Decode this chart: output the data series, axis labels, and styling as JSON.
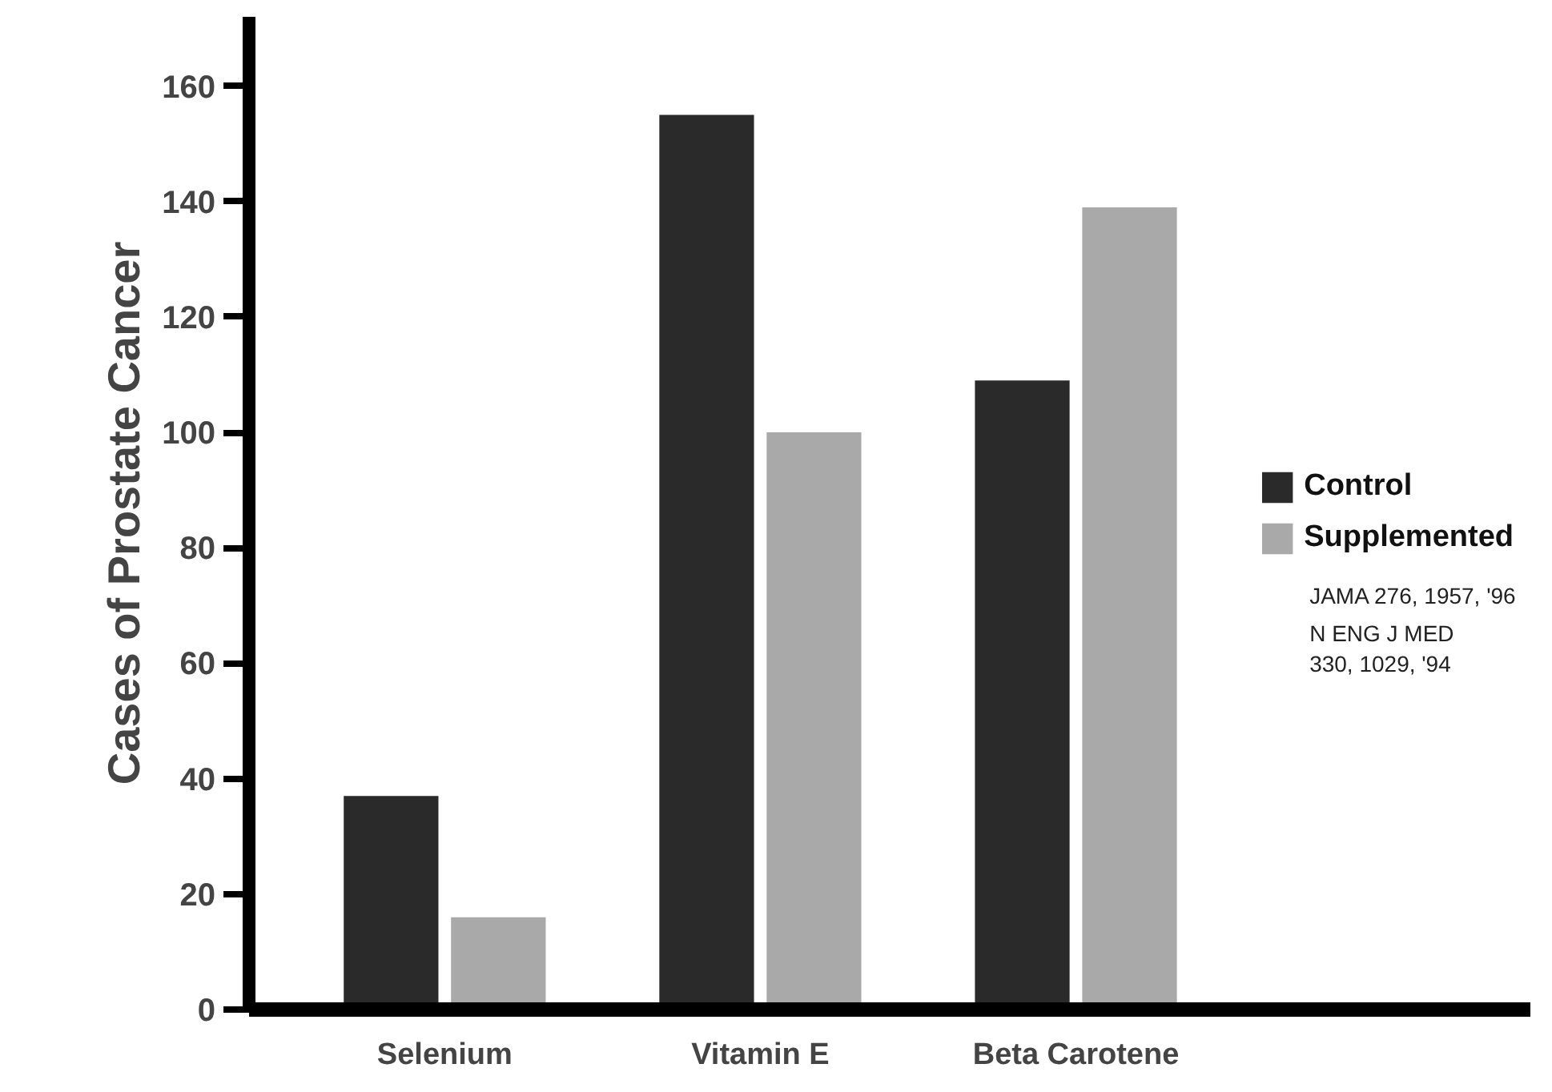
{
  "chart_data": {
    "type": "bar",
    "ylabel": "Cases of Prostate Cancer",
    "categories": [
      "Selenium",
      "Vitamin E",
      "Beta Carotene"
    ],
    "series": [
      {
        "name": "Control",
        "color": "#2a2a2a",
        "values": [
          37,
          155,
          109
        ]
      },
      {
        "name": "Supplemented",
        "color": "#a9a9a9",
        "values": [
          16,
          100,
          139
        ]
      }
    ],
    "ylim": [
      0,
      172
    ],
    "yticks": [
      0,
      20,
      40,
      60,
      80,
      100,
      120,
      140,
      160
    ],
    "grid": false,
    "legend": "right",
    "annotations": [
      "JAMA 276, 1957, '96",
      "N ENG J MED\n330, 1029, '94"
    ]
  }
}
